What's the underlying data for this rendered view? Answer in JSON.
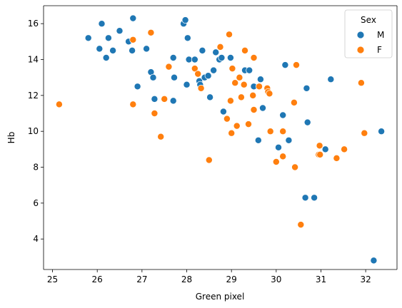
{
  "chart_data": {
    "type": "scatter",
    "title": "",
    "xlabel": "Green pixel",
    "ylabel": "Hb",
    "xlim": [
      24.8,
      32.7
    ],
    "ylim": [
      2.3,
      17.0
    ],
    "x_ticks": [
      25,
      26,
      27,
      28,
      29,
      30,
      31,
      32
    ],
    "y_ticks": [
      4,
      6,
      8,
      10,
      12,
      14,
      16
    ],
    "grid": false,
    "legend": {
      "title": "Sex",
      "placement": "top-right"
    },
    "series": [
      {
        "name": "M",
        "color": "#1f77b4",
        "points": [
          [
            25.8,
            15.2
          ],
          [
            26.1,
            16.0
          ],
          [
            26.05,
            14.6
          ],
          [
            26.2,
            14.1
          ],
          [
            26.25,
            15.2
          ],
          [
            26.35,
            14.5
          ],
          [
            26.5,
            15.6
          ],
          [
            26.7,
            15.0
          ],
          [
            26.78,
            14.5
          ],
          [
            26.8,
            16.3
          ],
          [
            26.9,
            12.5
          ],
          [
            27.1,
            14.6
          ],
          [
            27.2,
            13.3
          ],
          [
            27.25,
            13.0
          ],
          [
            27.28,
            11.8
          ],
          [
            27.7,
            14.1
          ],
          [
            27.7,
            11.7
          ],
          [
            27.72,
            13.0
          ],
          [
            27.93,
            16.0
          ],
          [
            27.97,
            16.2
          ],
          [
            28.0,
            12.6
          ],
          [
            28.02,
            15.2
          ],
          [
            28.05,
            14.0
          ],
          [
            28.18,
            14.0
          ],
          [
            28.28,
            12.8
          ],
          [
            28.3,
            12.6
          ],
          [
            28.35,
            14.5
          ],
          [
            28.4,
            13.0
          ],
          [
            28.48,
            13.1
          ],
          [
            28.52,
            11.9
          ],
          [
            28.6,
            13.4
          ],
          [
            28.65,
            14.4
          ],
          [
            28.73,
            14.0
          ],
          [
            28.78,
            14.1
          ],
          [
            28.82,
            11.1
          ],
          [
            28.98,
            14.1
          ],
          [
            29.3,
            13.4
          ],
          [
            29.4,
            13.4
          ],
          [
            29.5,
            12.5
          ],
          [
            29.6,
            9.5
          ],
          [
            29.65,
            12.9
          ],
          [
            29.7,
            11.3
          ],
          [
            30.05,
            9.1
          ],
          [
            30.15,
            10.9
          ],
          [
            30.2,
            13.7
          ],
          [
            30.28,
            9.5
          ],
          [
            30.65,
            6.3
          ],
          [
            30.68,
            12.4
          ],
          [
            30.7,
            10.5
          ],
          [
            30.85,
            6.3
          ],
          [
            31.1,
            9.0
          ],
          [
            31.22,
            12.9
          ],
          [
            32.18,
            2.8
          ],
          [
            32.35,
            10.0
          ]
        ]
      },
      {
        "name": "F",
        "color": "#ff7f0e",
        "points": [
          [
            25.15,
            11.5
          ],
          [
            26.8,
            15.1
          ],
          [
            26.8,
            11.5
          ],
          [
            27.2,
            15.5
          ],
          [
            27.28,
            11.0
          ],
          [
            27.42,
            9.7
          ],
          [
            27.5,
            11.8
          ],
          [
            27.6,
            13.6
          ],
          [
            28.18,
            13.5
          ],
          [
            28.25,
            13.2
          ],
          [
            28.32,
            12.4
          ],
          [
            28.5,
            8.4
          ],
          [
            28.75,
            14.7
          ],
          [
            28.9,
            10.7
          ],
          [
            28.95,
            15.4
          ],
          [
            28.98,
            11.7
          ],
          [
            29.0,
            9.9
          ],
          [
            29.02,
            13.5
          ],
          [
            29.08,
            12.7
          ],
          [
            29.12,
            10.3
          ],
          [
            29.18,
            13.0
          ],
          [
            29.22,
            11.9
          ],
          [
            29.28,
            12.6
          ],
          [
            29.3,
            14.5
          ],
          [
            29.38,
            10.4
          ],
          [
            29.48,
            12.0
          ],
          [
            29.5,
            11.2
          ],
          [
            29.5,
            14.1
          ],
          [
            29.62,
            12.5
          ],
          [
            29.8,
            12.4
          ],
          [
            29.82,
            12.2
          ],
          [
            29.85,
            12.1
          ],
          [
            29.87,
            10.0
          ],
          [
            30.0,
            8.3
          ],
          [
            30.15,
            10.0
          ],
          [
            30.15,
            8.6
          ],
          [
            30.4,
            11.6
          ],
          [
            30.42,
            8.0
          ],
          [
            30.45,
            13.7
          ],
          [
            30.55,
            4.8
          ],
          [
            30.95,
            8.7
          ],
          [
            30.97,
            9.2
          ],
          [
            30.98,
            8.7
          ],
          [
            31.35,
            8.5
          ],
          [
            31.52,
            9.0
          ],
          [
            31.9,
            12.7
          ],
          [
            31.97,
            9.9
          ]
        ]
      }
    ]
  }
}
